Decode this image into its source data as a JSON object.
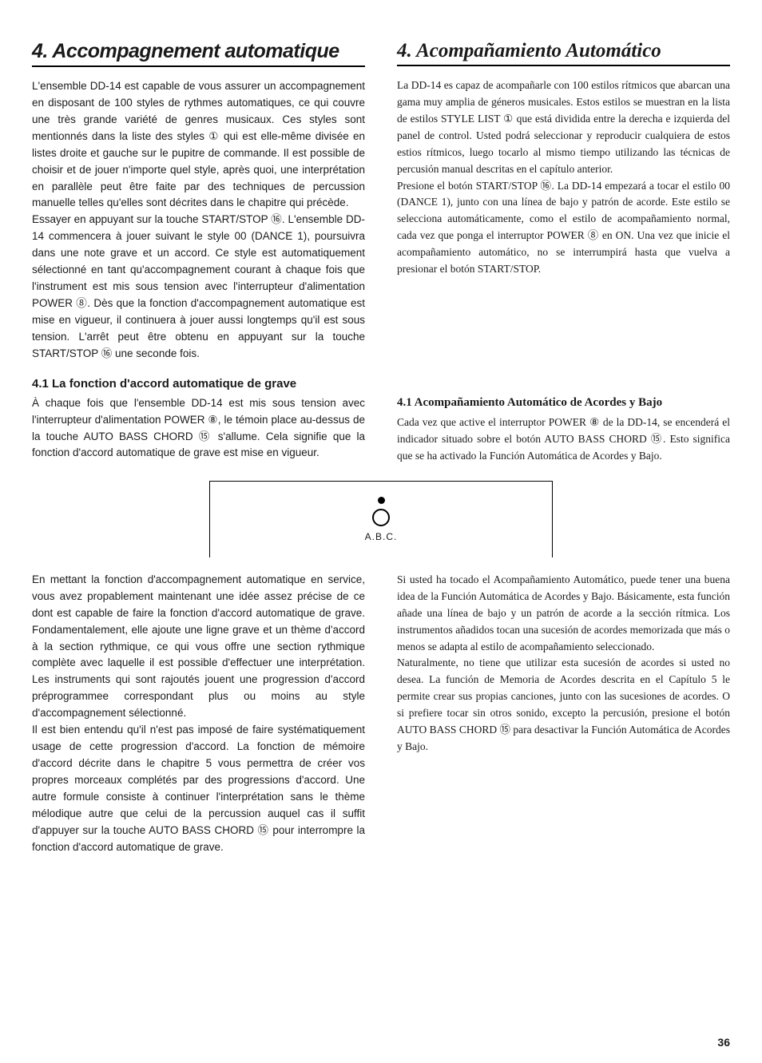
{
  "page_number": "36",
  "left": {
    "title": "4. Accompagnement automatique",
    "p1": "L'ensemble DD-14 est capable de vous assurer un accompagnement en disposant de 100 styles de rythmes automatiques, ce qui couvre une très grande variété de genres musicaux. Ces styles sont mentionnés dans la liste des styles ① qui est elle-même divisée en listes droite et gauche sur le pupitre de commande. Il est possible de choisir et de jouer n'importe quel style, après quoi, une interprétation en parallèle peut être faite par des techniques de percussion manuelle telles qu'elles sont décrites dans le chapitre qui précède.",
    "p2": "Essayer en appuyant sur la touche START/STOP ⑯. L'ensemble DD-14 commencera à jouer suivant le style 00 (DANCE 1), poursuivra dans une note grave et un accord. Ce style est automatiquement sélectionné en tant qu'accompagnement courant à chaque fois que l'instrument est mis sous tension avec l'interrupteur d'alimentation POWER ⑧. Dès que la fonction d'accompagnement automatique est mise en vigueur, il continuera à jouer aussi longtemps qu'il est sous tension. L'arrêt peut être obtenu en appuyant sur la touche START/STOP ⑯ une seconde fois.",
    "sub": "4.1 La fonction d'accord automatique de grave",
    "p3": "À chaque fois que l'ensemble DD-14 est mis sous tension avec l'interrupteur d'alimentation POWER ⑧, le témoin place au-dessus de la touche AUTO BASS CHORD ⑮ s'allume. Cela signifie que la fonction d'accord automatique de grave est mise en vigueur.",
    "p4": "En mettant la fonction d'accompagnement automatique en service, vous avez propablement maintenant une idée assez précise de ce dont est capable de faire la fonction d'accord automatique de grave. Fondamentalement, elle ajoute une ligne grave et un thème d'accord à la section rythmique, ce qui vous offre une section rythmique complète avec laquelle il est possible d'effectuer une interprétation. Les instruments qui sont rajoutés jouent une progression d'accord préprogrammee correspondant plus ou moins au style d'accompagnement sélectionné.",
    "p5": "Il est bien entendu qu'il n'est pas imposé de faire systématiquement usage de cette progression d'accord. La fonction de mémoire d'accord décrite dans le chapitre 5 vous permettra de créer vos propres morceaux complétés par des progressions d'accord. Une autre formule consiste à continuer l'interprétation sans le thème mélodique autre que celui de la percussion auquel cas il suffit d'appuyer sur la touche AUTO BASS CHORD ⑮ pour interrompre la fonction d'accord automatique de grave."
  },
  "right": {
    "title": "4. Acompañamiento Automático",
    "p1": "La DD-14 es capaz de acompañarle con 100 estilos rítmicos que abarcan una gama muy amplia de géneros musicales. Estos estilos se muestran en la lista de estilos STYLE LIST ① que está dividida entre la derecha e izquierda del panel de control. Usted podrá seleccionar y reproducir cualquiera de estos estios rítmicos, luego tocarlo al mismo tiempo utilizando las técnicas de percusión manual descritas en el capítulo anterior.",
    "p2": "Presione el botón START/STOP ⑯. La DD-14 empezará a tocar el estilo 00 (DANCE 1), junto con una línea de bajo y patrón de acorde. Este estilo se selecciona automáticamente, como el estilo de acompañamiento normal, cada vez que ponga el interruptor POWER ⑧ en ON. Una vez que inicie el acompañamiento automático, no se interrumpirá hasta que vuelva a presionar el botón START/STOP.",
    "sub": "4.1 Acompañamiento Automático de Acordes y Bajo",
    "p3": "Cada vez que active el interruptor POWER ⑧ de la DD-14, se encenderá el indicador situado sobre el botón AUTO BASS CHORD ⑮. Esto significa que se ha activado la Función Automática de Acordes y Bajo.",
    "p4": "Si usted ha tocado el Acompañamiento Automático, puede tener una buena idea de la Función Automática de Acordes y Bajo. Básicamente, esta función añade una línea de bajo y un patrón de acorde a la sección rítmica. Los instrumentos añadidos tocan una sucesión de acordes memorizada que más o menos se adapta al estilo de acompañamiento seleccionado.",
    "p5": "Naturalmente, no tiene que utilizar esta sucesión de acordes si usted no desea. La función de Memoria de Acordes descrita en el Capítulo 5 le permite crear sus propias canciones, junto con las sucesiones de acordes. O si prefiere tocar sin otros sonido, excepto la percusión, presione el botón AUTO BASS CHORD ⑮ para desactivar la Función Automática de Acordes y Bajo."
  },
  "diagram": {
    "label": "A.B.C."
  }
}
